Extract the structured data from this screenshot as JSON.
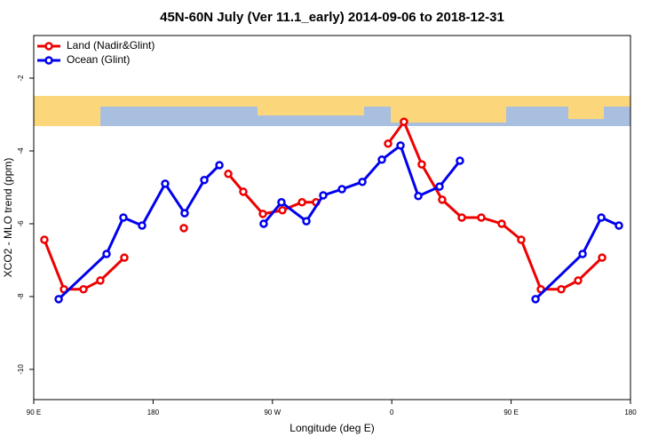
{
  "chart_data": {
    "type": "line",
    "title": "45N-60N July (Ver 11.1_early)   2014-09-06 to 2018-12-31",
    "xlabel": "Longitude (deg E)",
    "ylabel": "XCO2 - MLO trend (ppm)",
    "xlim": [
      90,
      540
    ],
    "ylim": [
      -10.83,
      -0.83
    ],
    "xticks": [
      {
        "value": 90,
        "label": "90 E"
      },
      {
        "value": 180,
        "label": "180"
      },
      {
        "value": 270,
        "label": "90 W"
      },
      {
        "value": 360,
        "label": "0"
      },
      {
        "value": 450,
        "label": "90 E"
      },
      {
        "value": 540,
        "label": "180"
      }
    ],
    "yticks": [
      -10,
      -8,
      -6,
      -4,
      -2
    ],
    "legend": "top-left",
    "series": [
      {
        "name": "Land (Nadir&Glint)",
        "color": "#ee0000",
        "x": [
          98.0,
          112.8,
          127.5,
          140.2,
          158.3,
          null,
          203.2,
          null,
          236.7,
          248.0,
          262.8,
          277.5,
          292.3,
          302.9,
          null,
          357.2,
          369.2,
          382.6,
          398.0,
          412.8,
          427.5,
          442.9,
          457.6,
          472.4,
          487.8,
          500.5,
          518.6
        ],
        "values": [
          -6.44,
          -7.8,
          -7.8,
          -7.56,
          -6.93,
          null,
          -6.12,
          null,
          -4.63,
          -5.12,
          -5.73,
          -5.63,
          -5.41,
          -5.41,
          null,
          -3.8,
          -3.2,
          -4.37,
          -5.34,
          -5.83,
          -5.83,
          -6.0,
          -6.44,
          -7.8,
          -7.8,
          -7.56,
          -6.93
        ]
      },
      {
        "name": "Ocean (Glint)",
        "color": "#0000ee",
        "x": [
          108.8,
          144.9,
          157.6,
          171.7,
          189.1,
          203.8,
          218.6,
          230.0,
          null,
          263.4,
          276.8,
          295.6,
          308.3,
          322.4,
          337.8,
          352.5,
          366.6,
          380.0,
          396.0,
          411.4,
          null,
          468.4,
          503.9,
          518.0,
          531.3
        ],
        "values": [
          -8.07,
          -6.83,
          -5.83,
          -6.05,
          -4.9,
          -5.71,
          -4.8,
          -4.39,
          null,
          -6.0,
          -5.41,
          -5.93,
          -5.22,
          -5.05,
          -4.85,
          -4.24,
          -3.85,
          -5.24,
          -4.98,
          -4.27,
          null,
          -8.07,
          -6.83,
          -5.83,
          -6.05
        ]
      }
    ]
  }
}
